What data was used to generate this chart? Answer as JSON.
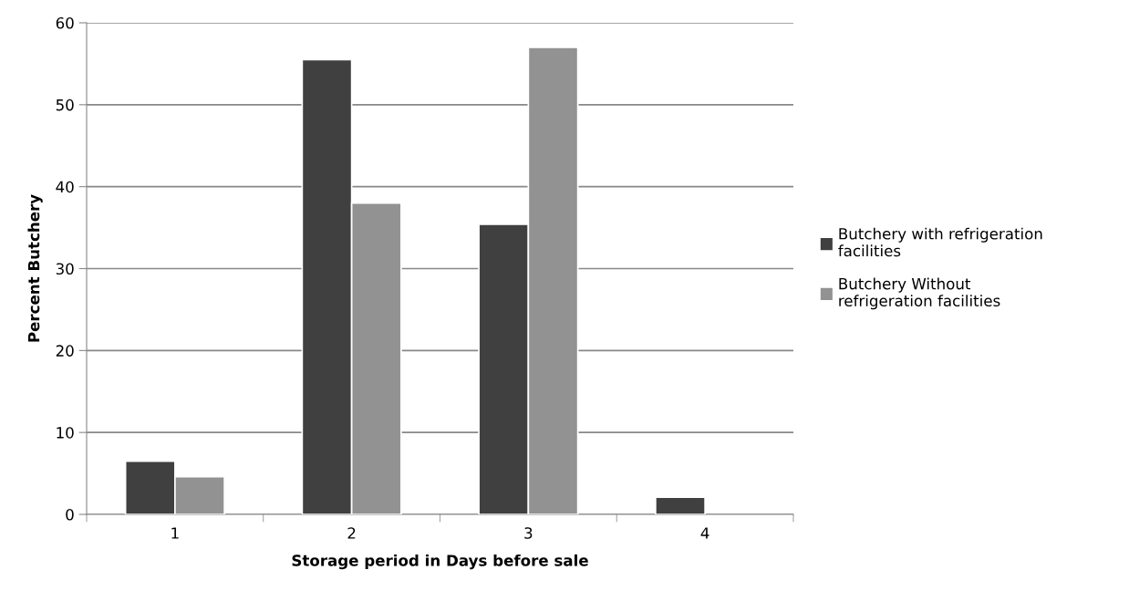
{
  "chart_data": {
    "type": "bar",
    "xlabel": "Storage period in Days before sale",
    "ylabel": "Percent Butchery",
    "categories": [
      "1",
      "2",
      "3",
      "4"
    ],
    "series": [
      {
        "name": "Butchery with refrigeration facilities",
        "color": "#404040",
        "values": [
          6.5,
          55.5,
          35.4,
          2.1
        ]
      },
      {
        "name": "Butchery Without refrigeration facilities",
        "color": "#929292",
        "values": [
          4.6,
          38.0,
          57.0,
          null
        ]
      }
    ],
    "ylim": [
      0,
      60
    ],
    "yticks": [
      0,
      10,
      20,
      30,
      40,
      50,
      60
    ],
    "grid": "y",
    "legend": "right"
  }
}
